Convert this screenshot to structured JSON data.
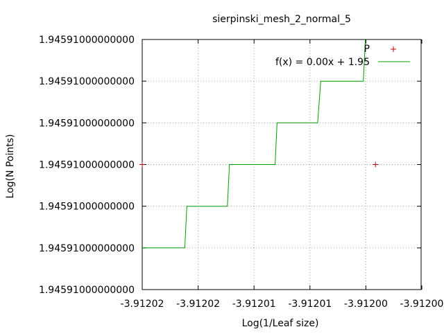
{
  "chart_data": {
    "type": "line",
    "title": "sierpinski_mesh_2_normal_5",
    "xlabel": "Log(1/Leaf size)",
    "ylabel": "Log(N Points)",
    "x_tick_labels": [
      "-3.91202",
      "-3.91202",
      "-3.91201",
      "-3.91201",
      "-3.91200",
      "-3.91200"
    ],
    "y_tick_labels": [
      "1.94591000000000",
      "1.94591000000000",
      "1.94591000000000",
      "1.94591000000000",
      "1.94591000000000",
      "1.94591000000000",
      "1.94591000000000"
    ],
    "xlim": [
      -3.912025,
      -3.9119975
    ],
    "ylim": [
      0,
      6
    ],
    "grid": true,
    "legend_position": "top-right",
    "series": [
      {
        "name": "P",
        "kind": "points",
        "color": "#cc0000",
        "marker": "+",
        "points": [
          [
            -3.912025,
            3
          ],
          [
            -3.912002,
            3
          ]
        ]
      },
      {
        "name": "f(x) = 0.00x + 1.95",
        "kind": "line",
        "color": "#00a000",
        "points": [
          [
            -3.912025,
            1
          ],
          [
            -3.9120208,
            1
          ],
          [
            -3.9120206,
            2
          ],
          [
            -3.9120166,
            2
          ],
          [
            -3.9120164,
            3
          ],
          [
            -3.9120119,
            3
          ],
          [
            -3.9120117,
            4
          ],
          [
            -3.9120077,
            4
          ],
          [
            -3.9120074,
            5
          ],
          [
            -3.9120032,
            5
          ],
          [
            -3.912003,
            6
          ]
        ]
      }
    ]
  }
}
